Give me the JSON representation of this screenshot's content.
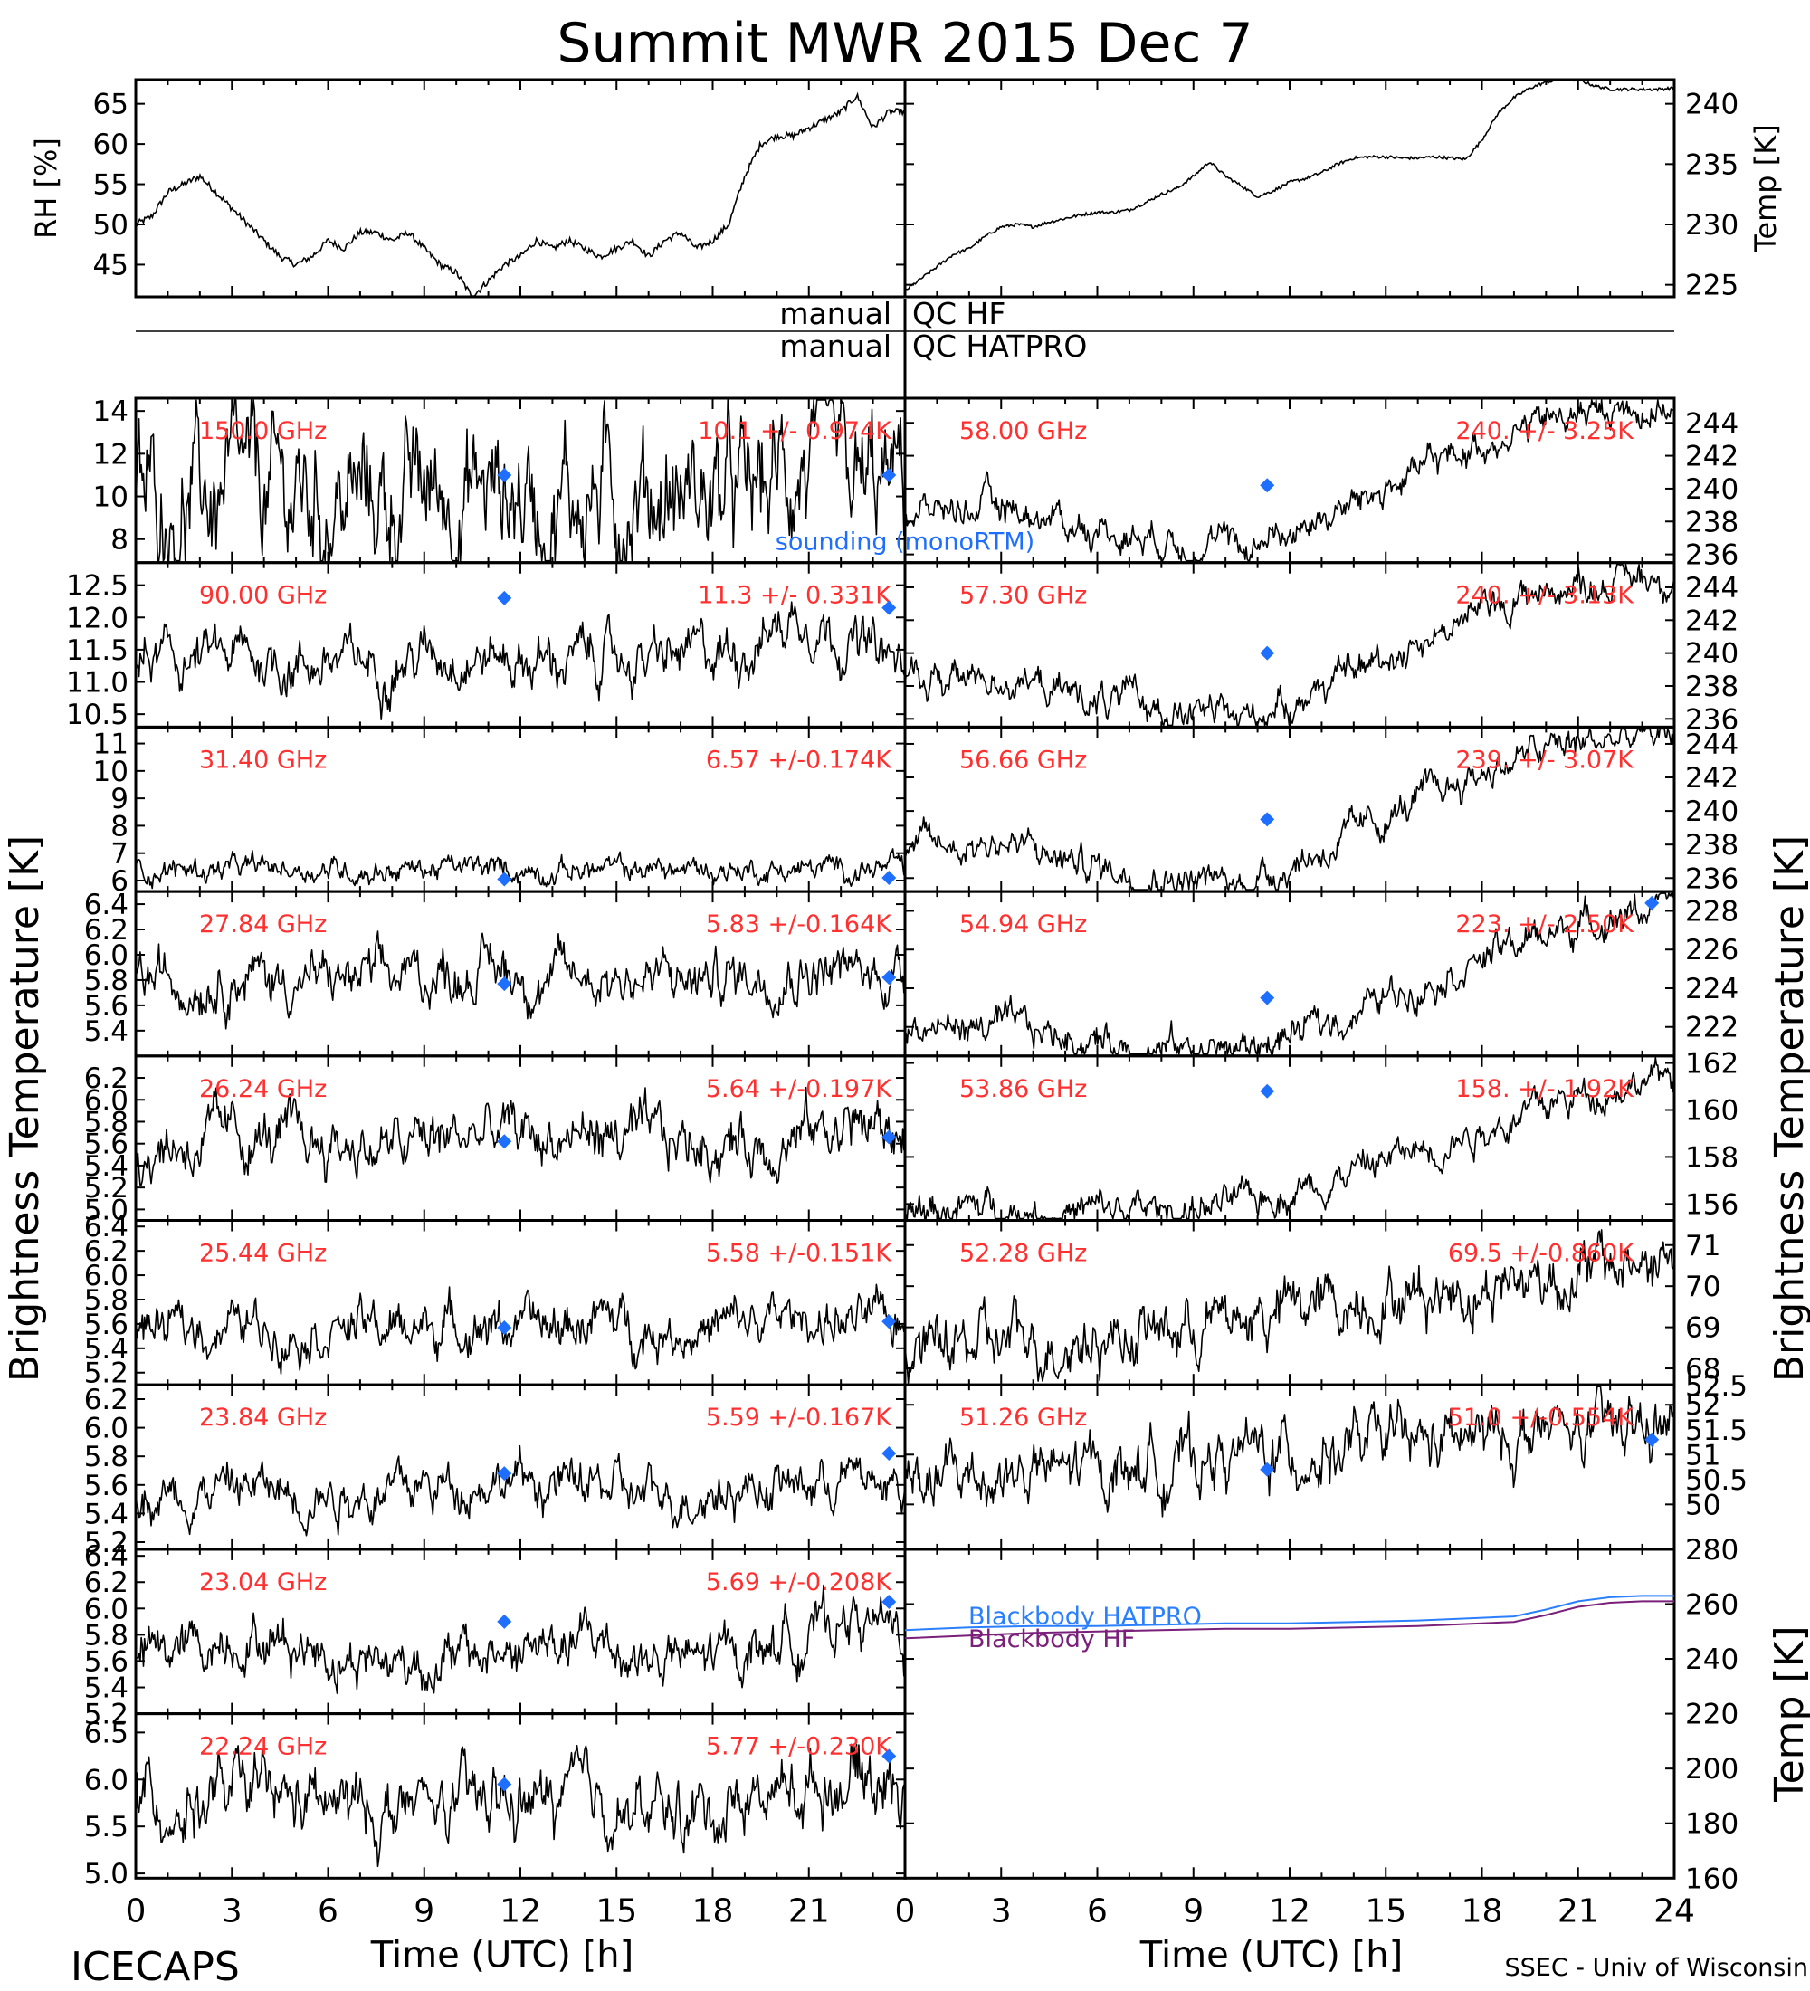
{
  "title": "Summit MWR 2015 Dec  7",
  "footer": {
    "left": "ICECAPS",
    "right": "SSEC - Univ of Wisconsin",
    "xlabel": "Time (UTC) [h]"
  },
  "qc": {
    "manual": "manual",
    "hf": "QC HF",
    "hatpro": "QC HATPRO"
  },
  "colors": {
    "trace": "#000000",
    "label": "#ff3030",
    "sounding": "#1e6fff",
    "bb_hatpro": "#2a7fff",
    "bb_hf": "#7a1f7a"
  },
  "chart_data": [
    {
      "id": "rh",
      "type": "line",
      "ylabel": "RH [%]",
      "ylim": [
        41,
        68
      ],
      "yticks": [
        45,
        50,
        55,
        60,
        65
      ],
      "xlim": [
        0,
        24
      ],
      "x": [
        0,
        0.5,
        1,
        1.5,
        2,
        2.5,
        3,
        3.5,
        4,
        4.5,
        5,
        5.5,
        6,
        6.5,
        7,
        7.5,
        8,
        8.5,
        9,
        9.5,
        10,
        10.5,
        11,
        11.5,
        12,
        12.5,
        13,
        13.5,
        14,
        14.5,
        15,
        15.5,
        16,
        16.5,
        17,
        17.5,
        18,
        18.5,
        19,
        19.5,
        20,
        20.5,
        21,
        21.5,
        22,
        22.5,
        23,
        23.5,
        24
      ],
      "y": [
        50,
        51,
        54,
        55,
        56,
        54,
        52,
        50,
        48,
        46,
        45,
        46,
        48,
        47,
        49,
        49,
        48,
        49,
        47,
        45,
        44,
        41,
        43,
        45,
        46,
        48,
        47,
        48,
        47,
        46,
        47,
        48,
        46,
        48,
        49,
        47,
        48,
        50,
        56,
        60,
        61,
        61,
        62,
        63,
        64,
        66,
        62,
        64,
        64
      ]
    },
    {
      "id": "temp",
      "type": "line",
      "ylabel": "Temp [K]",
      "ylim": [
        224,
        242
      ],
      "yticks": [
        225,
        230,
        235,
        240
      ],
      "xlim": [
        0,
        24
      ],
      "x": [
        0,
        0.5,
        1,
        1.5,
        2,
        2.5,
        3,
        3.5,
        4,
        4.5,
        5,
        5.5,
        6,
        6.5,
        7,
        7.5,
        8,
        8.5,
        9,
        9.5,
        10,
        10.5,
        11,
        11.5,
        12,
        12.5,
        13,
        13.5,
        14,
        14.5,
        15,
        15.5,
        16,
        16.5,
        17,
        17.5,
        18,
        18.5,
        19,
        19.5,
        20,
        20.5,
        21,
        21.5,
        22,
        22.5,
        23,
        23.5,
        24
      ],
      "y": [
        224.5,
        225.5,
        226.5,
        227.5,
        228,
        229,
        229.8,
        230,
        229.8,
        230.2,
        230.5,
        230.8,
        231,
        231,
        231.2,
        231.8,
        232.5,
        233,
        234,
        235.2,
        234,
        233.2,
        232.3,
        232.8,
        233.5,
        233.8,
        234.3,
        235,
        235.5,
        235.6,
        235.6,
        235.5,
        235.5,
        235.6,
        235.5,
        235.4,
        237,
        239.2,
        240.5,
        241.3,
        241.8,
        242,
        242,
        241.5,
        241.2,
        241.2,
        241.2,
        241.2,
        241.3
      ]
    }
  ],
  "channels_left": [
    {
      "freq": "150.0 GHz",
      "stat": "10.1 +/- 0.974K",
      "ylim": [
        6.9,
        14.6
      ],
      "yticks": [
        "8",
        "10",
        "12",
        "14"
      ],
      "ytickvals": [
        8,
        10,
        12,
        14
      ],
      "base": [
        9.8,
        9.8,
        9.9,
        10.0,
        9.7,
        9.9,
        10.2,
        10.3,
        10.0,
        10.1,
        10.4,
        10.2,
        9.6,
        11.8,
        9.7,
        10.5
      ],
      "noise": 1.4,
      "snd": [
        [
          11.5,
          11.0
        ],
        [
          23.5,
          11.0
        ]
      ],
      "sounding_label": "sounding (monoRTM)"
    },
    {
      "freq": "90.00 GHz",
      "stat": "11.3 +/- 0.331K",
      "ylim": [
        10.3,
        12.85
      ],
      "yticks": [
        "10.5",
        "11.0",
        "11.5",
        "12.0",
        "12.5"
      ],
      "ytickvals": [
        10.5,
        11.0,
        11.5,
        12.0,
        12.5
      ],
      "base": [
        11.3,
        11.3,
        11.4,
        11.3,
        11.3,
        11.3,
        11.5,
        11.4,
        11.3,
        11.4,
        11.3,
        11.4,
        11.6,
        12.1,
        11.6,
        11.2
      ],
      "noise": 0.55,
      "snd": [
        [
          11.5,
          12.3
        ],
        [
          23.5,
          12.15
        ]
      ]
    },
    {
      "freq": "31.40 GHz",
      "stat": "6.57 +/-0.174K",
      "ylim": [
        5.6,
        11.6
      ],
      "yticks": [
        "6",
        "7",
        "8",
        "9",
        "10",
        "11"
      ],
      "ytickvals": [
        6,
        7,
        8,
        9,
        10,
        11
      ],
      "base": [
        6.4,
        6.4,
        6.4,
        6.45,
        6.4,
        6.4,
        6.45,
        6.4,
        6.4,
        6.4,
        6.4,
        6.4,
        6.4,
        6.4,
        6.45,
        6.4
      ],
      "noise": 0.25,
      "snd": [
        [
          11.5,
          6.05
        ],
        [
          23.5,
          6.1
        ]
      ]
    },
    {
      "freq": "27.84 GHz",
      "stat": "5.83 +/-0.164K",
      "ylim": [
        5.2,
        6.5
      ],
      "yticks": [
        "5.4",
        "5.6",
        "5.8",
        "6.0",
        "6.2",
        "6.4"
      ],
      "ytickvals": [
        5.4,
        5.6,
        5.8,
        6.0,
        6.2,
        6.4
      ],
      "base": [
        5.8,
        5.8,
        5.85,
        5.8,
        5.8,
        5.8,
        5.85,
        5.9,
        5.8,
        5.85,
        5.8,
        5.8,
        5.85,
        5.9,
        5.85,
        5.85
      ],
      "noise": 0.55,
      "snd": [
        [
          11.5,
          5.77
        ],
        [
          23.5,
          5.82
        ]
      ]
    },
    {
      "freq": "26.24 GHz",
      "stat": "5.64 +/-0.197K",
      "ylim": [
        4.9,
        6.4
      ],
      "yticks": [
        "5.0",
        "5.2",
        "5.4",
        "5.6",
        "5.8",
        "6.0",
        "6.2"
      ],
      "ytickvals": [
        5.0,
        5.2,
        5.4,
        5.6,
        5.8,
        6.0,
        6.2
      ],
      "base": [
        5.55,
        5.6,
        5.65,
        5.6,
        5.6,
        5.55,
        5.65,
        5.7,
        5.65,
        5.7,
        5.6,
        5.6,
        5.6,
        5.7,
        5.8,
        5.65
      ],
      "noise": 0.6,
      "snd": [
        [
          11.5,
          5.62
        ],
        [
          23.5,
          5.66
        ]
      ]
    },
    {
      "freq": "25.44 GHz",
      "stat": "5.58 +/-0.151K",
      "ylim": [
        5.1,
        6.45
      ],
      "yticks": [
        "5.2",
        "5.4",
        "5.6",
        "5.8",
        "6.0",
        "6.2",
        "6.4"
      ],
      "ytickvals": [
        5.2,
        5.4,
        5.6,
        5.8,
        6.0,
        6.2,
        6.4
      ],
      "base": [
        5.55,
        5.55,
        5.6,
        5.55,
        5.6,
        5.55,
        5.6,
        5.6,
        5.55,
        5.65,
        5.55,
        5.55,
        5.6,
        5.65,
        5.6,
        5.6
      ],
      "noise": 0.5,
      "snd": [
        [
          11.5,
          5.57
        ],
        [
          23.5,
          5.62
        ]
      ]
    },
    {
      "freq": "23.84 GHz",
      "stat": "5.59 +/-0.167K",
      "ylim": [
        5.15,
        6.3
      ],
      "yticks": [
        "5.2",
        "5.4",
        "5.6",
        "5.8",
        "6.0",
        "6.2"
      ],
      "ytickvals": [
        5.2,
        5.4,
        5.6,
        5.8,
        6.0,
        6.2
      ],
      "base": [
        5.55,
        5.55,
        5.6,
        5.55,
        5.55,
        5.55,
        5.6,
        5.65,
        5.6,
        5.6,
        5.5,
        5.55,
        5.6,
        5.6,
        5.65,
        5.6
      ],
      "noise": 0.5,
      "snd": [
        [
          11.5,
          5.68
        ],
        [
          23.5,
          5.82
        ]
      ]
    },
    {
      "freq": "23.04 GHz",
      "stat": "5.69 +/-0.208K",
      "ylim": [
        5.2,
        6.45
      ],
      "yticks": [
        "5.2",
        "5.4",
        "5.6",
        "5.8",
        "6.0",
        "6.2",
        "6.4"
      ],
      "ytickvals": [
        5.2,
        5.4,
        5.6,
        5.8,
        6.0,
        6.2,
        6.4
      ],
      "base": [
        5.6,
        5.7,
        5.8,
        5.75,
        5.65,
        5.6,
        5.6,
        5.65,
        5.7,
        5.75,
        5.6,
        5.6,
        5.7,
        5.8,
        5.95,
        5.75
      ],
      "noise": 0.55,
      "snd": [
        [
          11.5,
          5.9
        ],
        [
          23.5,
          6.05
        ]
      ]
    },
    {
      "freq": "22.24 GHz",
      "stat": "5.77 +/-0.230K",
      "ylim": [
        4.95,
        6.7
      ],
      "yticks": [
        "5.0",
        "5.5",
        "6.0",
        "6.5"
      ],
      "ytickvals": [
        5.0,
        5.5,
        6.0,
        6.5
      ],
      "base": [
        5.75,
        5.75,
        5.85,
        5.75,
        5.7,
        5.65,
        5.7,
        5.75,
        5.75,
        5.8,
        5.6,
        5.65,
        5.85,
        5.9,
        6.1,
        5.9
      ],
      "noise": 0.7,
      "snd": [
        [
          11.5,
          5.95
        ],
        [
          23.5,
          6.25
        ]
      ]
    }
  ],
  "channels_right": [
    {
      "freq": "58.00 GHz",
      "stat": "240. +/- 3.25K",
      "ylim": [
        235.5,
        245.5
      ],
      "yticks": [
        "236",
        "238",
        "240",
        "242",
        "244"
      ],
      "ytickvals": [
        236,
        238,
        240,
        242,
        244
      ],
      "base": [
        238.5,
        238.8,
        239.0,
        238.2,
        237.5,
        237.2,
        236.8,
        236.4,
        237.5,
        238.6,
        240.0,
        241.5,
        242.8,
        243.8,
        244.5,
        244.8,
        245.0
      ],
      "noise": 0.5,
      "snd": [
        [
          11.3,
          240.2
        ]
      ]
    },
    {
      "freq": "57.30 GHz",
      "stat": "240. +/- 3.13K",
      "ylim": [
        235.5,
        245.5
      ],
      "yticks": [
        "236",
        "238",
        "240",
        "242",
        "244"
      ],
      "ytickvals": [
        236,
        238,
        240,
        242,
        244
      ],
      "base": [
        238.2,
        238.4,
        238.6,
        237.8,
        237.2,
        236.8,
        236.3,
        236.0,
        237.2,
        238.3,
        239.8,
        241.2,
        242.5,
        243.6,
        244.2,
        244.6,
        244.8
      ],
      "noise": 0.5,
      "snd": [
        [
          11.3,
          240.0
        ]
      ]
    },
    {
      "freq": "56.66 GHz",
      "stat": "239. +/- 3.07K",
      "ylim": [
        235.2,
        245
      ],
      "yticks": [
        "236",
        "238",
        "240",
        "242",
        "244"
      ],
      "ytickvals": [
        236,
        238,
        240,
        242,
        244
      ],
      "base": [
        237.8,
        238.0,
        238.2,
        237.3,
        236.7,
        236.3,
        235.9,
        235.6,
        236.8,
        238.0,
        239.5,
        241.0,
        242.3,
        243.4,
        244.0,
        244.3,
        244.5
      ],
      "noise": 0.5,
      "snd": [
        [
          11.3,
          239.5
        ]
      ]
    },
    {
      "freq": "54.94 GHz",
      "stat": "223. +/- 2.50K",
      "ylim": [
        220.5,
        229
      ],
      "yticks": [
        "222",
        "224",
        "226",
        "228"
      ],
      "ytickvals": [
        222,
        224,
        226,
        228
      ],
      "base": [
        222.0,
        222.0,
        222.0,
        221.6,
        221.3,
        221.0,
        220.9,
        220.8,
        221.5,
        222.4,
        223.5,
        224.6,
        225.6,
        226.5,
        227.3,
        227.9,
        228.4
      ],
      "noise": 0.5,
      "snd": [
        [
          11.3,
          223.5
        ],
        [
          23.3,
          228.4
        ]
      ]
    },
    {
      "freq": "53.86 GHz",
      "stat": "158. +/- 1.92K",
      "ylim": [
        155.3,
        162.3
      ],
      "yticks": [
        "156",
        "158",
        "160",
        "162"
      ],
      "ytickvals": [
        156,
        158,
        160,
        162
      ],
      "base": [
        155.8,
        155.8,
        155.8,
        155.7,
        155.7,
        155.7,
        155.8,
        156.0,
        156.6,
        157.2,
        157.9,
        158.5,
        159.2,
        159.9,
        160.6,
        161.1,
        161.5
      ],
      "noise": 0.5,
      "snd": [
        [
          11.3,
          160.8
        ]
      ]
    },
    {
      "freq": "52.28 GHz",
      "stat": "69.5 +/-0.860K",
      "ylim": [
        67.6,
        71.6
      ],
      "yticks": [
        "68",
        "69",
        "70",
        "71"
      ],
      "ytickvals": [
        68,
        69,
        70,
        71
      ],
      "base": [
        68.4,
        68.5,
        68.6,
        68.7,
        68.8,
        68.9,
        69.0,
        69.2,
        69.4,
        69.6,
        69.8,
        69.9,
        70.0,
        70.2,
        70.3,
        70.5,
        70.6
      ],
      "noise": 0.9,
      "snd": []
    },
    {
      "freq": "51.26 GHz",
      "stat": "51.0 +/-0.554K",
      "ylim": [
        49.1,
        52.4
      ],
      "yticks": [
        "49",
        "50",
        "51",
        "52"
      ],
      "ytickvals": [
        49,
        50,
        51,
        52
      ],
      "extraticks": [
        "50.5",
        "51.5",
        "52.5"
      ],
      "base": [
        50.4,
        50.5,
        50.6,
        50.6,
        50.7,
        50.8,
        50.9,
        51.0,
        51.0,
        51.1,
        51.2,
        51.2,
        51.3,
        51.4,
        51.4,
        51.5,
        51.6
      ],
      "noise": 0.9,
      "snd": [
        [
          11.3,
          50.7
        ],
        [
          23.3,
          51.3
        ]
      ]
    }
  ],
  "blackbody": {
    "ylabel": "Temp [K]",
    "ylim": [
      160,
      280
    ],
    "yticks": [
      160,
      180,
      200,
      220,
      240,
      260,
      280
    ],
    "hatpro_label": "Blackbody HATPRO",
    "hf_label": "Blackbody HF",
    "x": [
      0,
      2,
      4,
      6,
      8,
      10,
      12,
      14,
      16,
      18,
      19,
      20,
      21,
      22,
      23,
      24
    ],
    "hatpro": [
      250.5,
      251.5,
      252,
      252,
      252.5,
      253,
      253,
      253.5,
      254,
      255,
      255.5,
      258,
      261,
      262.5,
      263,
      263
    ],
    "hf": [
      247.5,
      248.5,
      249.5,
      250,
      250.5,
      251,
      251,
      251.5,
      252,
      253,
      253.5,
      256,
      259,
      260.5,
      261,
      261
    ]
  },
  "xticks": [
    "0",
    "3",
    "6",
    "9",
    "12",
    "15",
    "18",
    "21",
    "24"
  ],
  "brightness_label": "Brightness Temperature [K]"
}
